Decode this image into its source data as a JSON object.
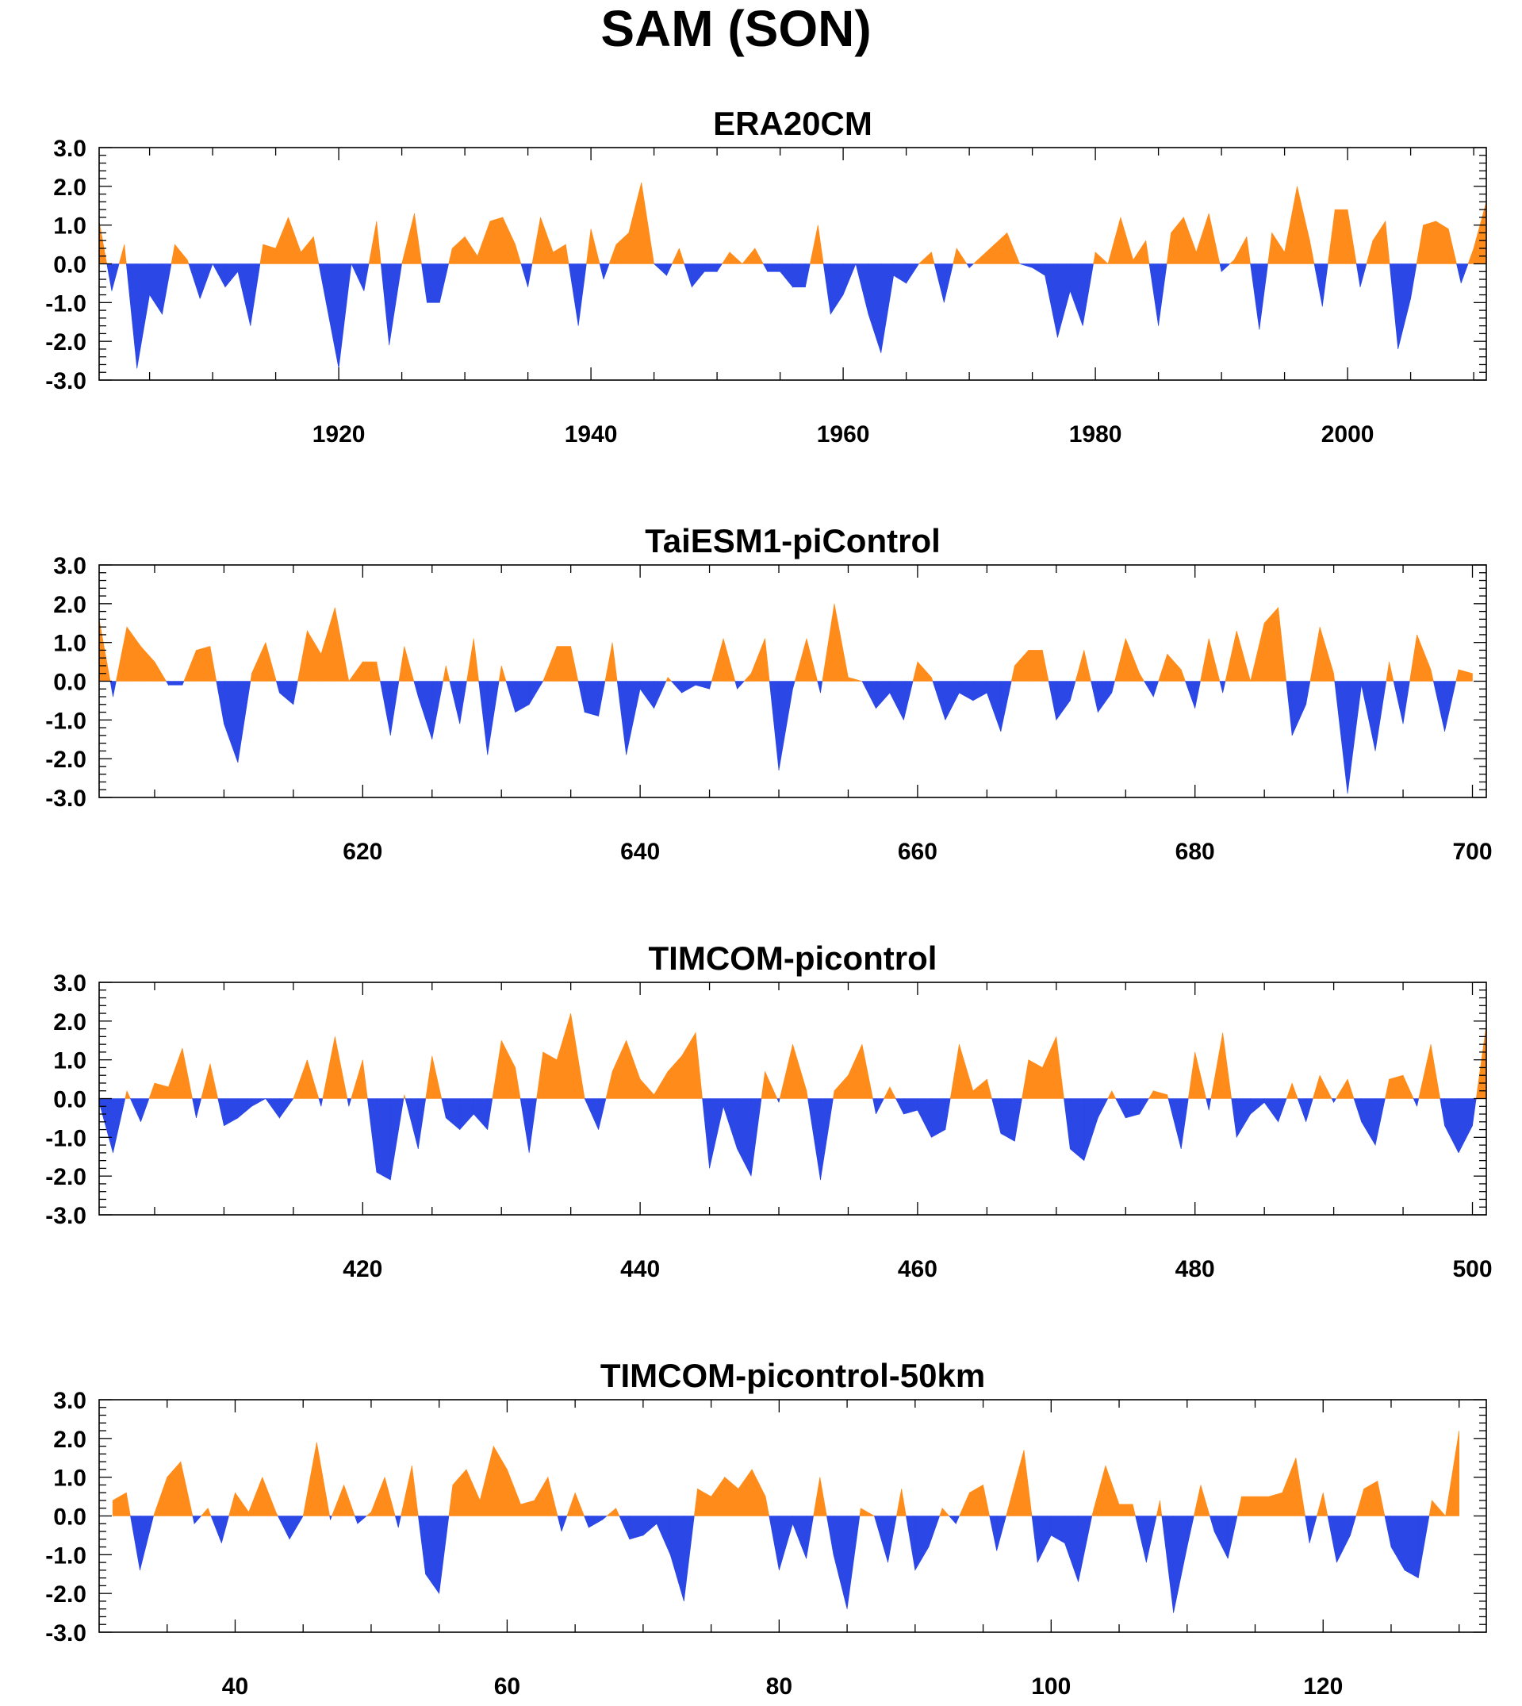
{
  "title": "SAM (SON)",
  "colors": {
    "positive": "#ff8c1a",
    "negative": "#2b47e6",
    "axis": "#000000"
  },
  "chart_data": [
    {
      "type": "area",
      "title": "ERA20CM",
      "xlim": [
        1901,
        2011
      ],
      "ylim": [
        -3.0,
        3.0
      ],
      "xticks": [
        "1920",
        "1940",
        "1960",
        "1980",
        "2000"
      ],
      "yticks": [
        "3.0",
        "2.0",
        "1.0",
        "0.0",
        "-1.0",
        "-2.0",
        "-3.0"
      ],
      "x_start": 1901,
      "values": [
        1.1,
        -0.7,
        0.5,
        -2.7,
        -0.8,
        -1.3,
        0.5,
        0.1,
        -0.9,
        0.0,
        -0.6,
        -0.2,
        -1.6,
        0.5,
        0.4,
        1.2,
        0.3,
        0.7,
        -1.0,
        -2.7,
        0.0,
        -0.7,
        1.1,
        -2.1,
        0.0,
        1.3,
        -1.0,
        -1.0,
        0.4,
        0.7,
        0.2,
        1.1,
        1.2,
        0.5,
        -0.6,
        1.2,
        0.3,
        0.5,
        -1.6,
        0.9,
        -0.4,
        0.5,
        0.8,
        2.1,
        0.0,
        -0.3,
        0.4,
        -0.6,
        -0.2,
        -0.2,
        0.3,
        0.0,
        0.4,
        -0.2,
        -0.2,
        -0.6,
        -0.6,
        1.0,
        -1.3,
        -0.8,
        0.0,
        -1.3,
        -2.3,
        -0.3,
        -0.5,
        0.0,
        0.3,
        -1.0,
        0.4,
        -0.1,
        0.2,
        0.5,
        0.8,
        0.0,
        -0.1,
        -0.3,
        -1.9,
        -0.7,
        -1.6,
        0.3,
        0.0,
        1.2,
        0.1,
        0.6,
        -1.6,
        0.8,
        1.2,
        0.3,
        1.3,
        -0.2,
        0.1,
        0.7,
        -1.7,
        0.8,
        0.3,
        2.0,
        0.6,
        -1.1,
        1.4,
        1.4,
        -0.6,
        0.6,
        1.1,
        -2.2,
        -0.9,
        1.0,
        1.1,
        0.9,
        -0.5,
        0.4,
        1.6
      ]
    },
    {
      "type": "area",
      "title": "TaiESM1-piControl",
      "xlim": [
        601,
        701
      ],
      "ylim": [
        -3.0,
        3.0
      ],
      "xticks": [
        "620",
        "640",
        "660",
        "680",
        "700"
      ],
      "yticks": [
        "3.0",
        "2.0",
        "1.0",
        "0.0",
        "-1.0",
        "-2.0",
        "-3.0"
      ],
      "x_start": 601,
      "values": [
        1.6,
        -0.4,
        1.4,
        0.9,
        0.5,
        -0.1,
        -0.1,
        0.8,
        0.9,
        -1.1,
        -2.1,
        0.2,
        1.0,
        -0.3,
        -0.6,
        1.3,
        0.7,
        1.9,
        0.0,
        0.5,
        0.5,
        -1.4,
        0.9,
        -0.4,
        -1.5,
        0.4,
        -1.1,
        1.1,
        -1.9,
        0.4,
        -0.8,
        -0.6,
        0.0,
        0.9,
        0.9,
        -0.8,
        -0.9,
        1.0,
        -1.9,
        -0.2,
        -0.7,
        0.1,
        -0.3,
        -0.1,
        -0.2,
        1.1,
        -0.2,
        0.2,
        1.1,
        -2.3,
        -0.2,
        1.1,
        -0.3,
        2.0,
        0.1,
        0.0,
        -0.7,
        -0.3,
        -1.0,
        0.5,
        0.1,
        -1.0,
        -0.3,
        -0.5,
        -0.3,
        -1.3,
        0.4,
        0.8,
        0.8,
        -1.0,
        -0.5,
        0.8,
        -0.8,
        -0.3,
        1.1,
        0.2,
        -0.4,
        0.7,
        0.3,
        -0.7,
        1.1,
        -0.3,
        1.3,
        0.0,
        1.5,
        1.9,
        -1.4,
        -0.6,
        1.4,
        0.2,
        -2.9,
        -0.1,
        -1.8,
        0.5,
        -1.1,
        1.2,
        0.3,
        -1.3,
        0.3,
        0.2
      ]
    },
    {
      "type": "area",
      "title": "TIMCOM-picontrol",
      "xlim": [
        401,
        501
      ],
      "ylim": [
        -3.0,
        3.0
      ],
      "xticks": [
        "420",
        "440",
        "460",
        "480",
        "500"
      ],
      "yticks": [
        "3.0",
        "2.0",
        "1.0",
        "0.0",
        "-1.0",
        "-2.0",
        "-3.0"
      ],
      "x_start": 401,
      "values": [
        -0.1,
        -1.4,
        0.2,
        -0.6,
        0.4,
        0.3,
        1.3,
        -0.5,
        0.9,
        -0.7,
        -0.5,
        -0.2,
        0.0,
        -0.5,
        0.0,
        1.0,
        -0.2,
        1.6,
        -0.2,
        1.0,
        -1.9,
        -2.1,
        0.1,
        -1.3,
        1.1,
        -0.5,
        -0.8,
        -0.4,
        -0.8,
        1.5,
        0.8,
        -1.4,
        1.2,
        1.0,
        2.2,
        0.0,
        -0.8,
        0.7,
        1.5,
        0.5,
        0.1,
        0.7,
        1.1,
        1.7,
        -1.8,
        -0.2,
        -1.3,
        -2.0,
        0.7,
        -0.1,
        1.4,
        0.2,
        -2.1,
        0.2,
        0.6,
        1.4,
        -0.4,
        0.3,
        -0.4,
        -0.3,
        -1.0,
        -0.8,
        1.4,
        0.2,
        0.5,
        -0.9,
        -1.1,
        1.0,
        0.8,
        1.6,
        -1.3,
        -1.6,
        -0.5,
        0.2,
        -0.5,
        -0.4,
        0.2,
        0.1,
        -1.3,
        1.2,
        -0.3,
        1.7,
        -1.0,
        -0.4,
        -0.1,
        -0.6,
        0.4,
        -0.6,
        0.6,
        -0.1,
        0.5,
        -0.6,
        -1.2,
        0.5,
        0.6,
        -0.2,
        1.4,
        -0.7,
        -1.4,
        -0.7,
        1.9
      ]
    },
    {
      "type": "area",
      "title": "TIMCOM-picontrol-50km",
      "xlim": [
        30,
        132
      ],
      "ylim": [
        -3.0,
        3.0
      ],
      "xticks": [
        "40",
        "60",
        "80",
        "100",
        "120"
      ],
      "yticks": [
        "3.0",
        "2.0",
        "1.0",
        "0.0",
        "-1.0",
        "-2.0",
        "-3.0"
      ],
      "x_start": 31,
      "values": [
        0.4,
        0.6,
        -1.4,
        0.0,
        1.0,
        1.4,
        -0.2,
        0.2,
        -0.7,
        0.6,
        0.1,
        1.0,
        0.1,
        -0.6,
        0.0,
        1.9,
        -0.1,
        0.8,
        -0.2,
        0.1,
        1.0,
        -0.3,
        1.3,
        -1.5,
        -2.0,
        0.8,
        1.2,
        0.4,
        1.8,
        1.2,
        0.3,
        0.4,
        1.0,
        -0.4,
        0.6,
        -0.3,
        -0.1,
        0.2,
        -0.6,
        -0.5,
        -0.2,
        -1.0,
        -2.2,
        0.7,
        0.5,
        1.0,
        0.7,
        1.2,
        0.5,
        -1.4,
        -0.2,
        -1.1,
        1.0,
        -1.0,
        -2.4,
        0.2,
        0.0,
        -1.2,
        0.7,
        -1.4,
        -0.8,
        0.2,
        -0.2,
        0.6,
        0.8,
        -0.9,
        0.4,
        1.7,
        -1.2,
        -0.5,
        -0.7,
        -1.7,
        0.0,
        1.3,
        0.3,
        0.3,
        -1.2,
        0.4,
        -2.5,
        -0.8,
        0.8,
        -0.4,
        -1.1,
        0.5,
        0.5,
        0.5,
        0.6,
        1.5,
        -0.7,
        0.6,
        -1.2,
        -0.5,
        0.7,
        0.9,
        -0.8,
        -1.4,
        -1.6,
        0.4,
        0.0,
        2.2
      ]
    }
  ]
}
